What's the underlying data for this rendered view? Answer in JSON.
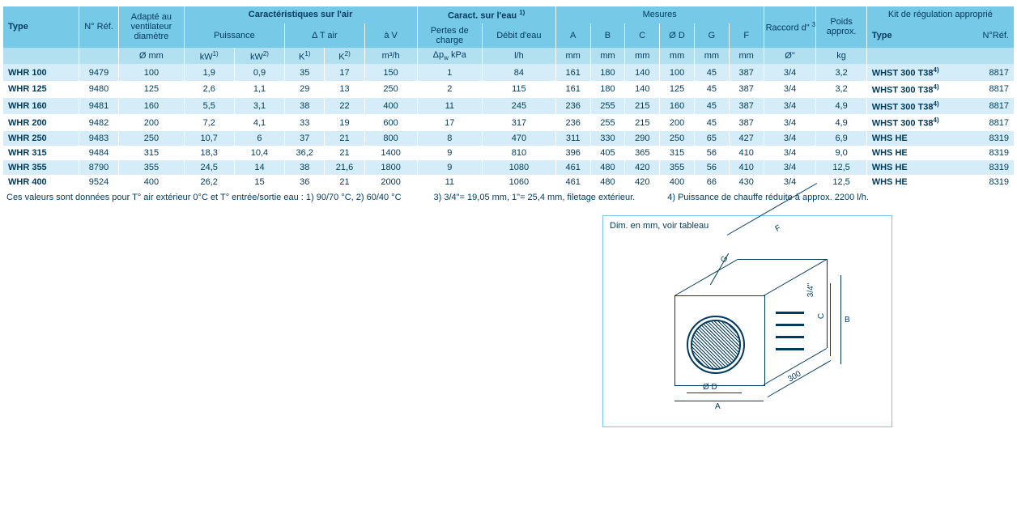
{
  "colors": {
    "h1": "#77c9e8",
    "h2": "#b3e0f1",
    "rowA": "#d4edf8",
    "rowB": "#ffffff",
    "text": "#003a5d"
  },
  "header": {
    "type": "Type",
    "ref": "N°\nRéf.",
    "fan": "Adapté au ventilateur diamètre",
    "air": "Caractéristiques sur l'air",
    "water": "Caract. sur l'eau ",
    "water_sup": "1)",
    "measures": "Mesures",
    "conn": "Raccord d\" ",
    "conn_sup": "3)",
    "weight": "Poids approx.",
    "kit": "Kit de régulation approprié",
    "power": "Puissance",
    "dtair": "Δ T air",
    "av": "à V",
    "dp": "Pertes de charge",
    "flow": "Débit d'eau",
    "A": "A",
    "B": "B",
    "C": "C",
    "D": "Ø D",
    "G": "G",
    "F": "F",
    "kit_type": "Type",
    "kit_ref": "N°Réf."
  },
  "units": {
    "mm": "Ø mm",
    "kw1": "kW",
    "kw1s": "1)",
    "kw2": "kW",
    "kw2s": "2)",
    "k1": "K",
    "k1s": "1)",
    "k2": "K",
    "k2s": "2)",
    "m3h": "m³/h",
    "dp": "Δp",
    "dpw": "w",
    "dpk": " kPa",
    "lh": "l/h",
    "Amm": "mm",
    "Bmm": "mm",
    "Cmm": "mm",
    "Dmm": "mm",
    "Gmm": "mm",
    "Fmm": "mm",
    "inch": "Ø\"",
    "kg": "kg"
  },
  "rows": [
    {
      "type": "WHR 100",
      "ref": "9479",
      "dia": "100",
      "kw1": "1,9",
      "kw2": "0,9",
      "k1": "35",
      "k2": "17",
      "v": "150",
      "dp": "1",
      "lh": "84",
      "A": "161",
      "B": "180",
      "C": "140",
      "D": "100",
      "G": "45",
      "F": "387",
      "conn": "3/4",
      "kg": "3,2",
      "kit": "WHST 300 T38",
      "kitsup": "4)",
      "kitref": "8817"
    },
    {
      "type": "WHR 125",
      "ref": "9480",
      "dia": "125",
      "kw1": "2,6",
      "kw2": "1,1",
      "k1": "29",
      "k2": "13",
      "v": "250",
      "dp": "2",
      "lh": "115",
      "A": "161",
      "B": "180",
      "C": "140",
      "D": "125",
      "G": "45",
      "F": "387",
      "conn": "3/4",
      "kg": "3,2",
      "kit": "WHST 300 T38",
      "kitsup": "4)",
      "kitref": "8817"
    },
    {
      "type": "WHR 160",
      "ref": "9481",
      "dia": "160",
      "kw1": "5,5",
      "kw2": "3,1",
      "k1": "38",
      "k2": "22",
      "v": "400",
      "dp": "11",
      "lh": "245",
      "A": "236",
      "B": "255",
      "C": "215",
      "D": "160",
      "G": "45",
      "F": "387",
      "conn": "3/4",
      "kg": "4,9",
      "kit": "WHST 300 T38",
      "kitsup": "4)",
      "kitref": "8817"
    },
    {
      "type": "WHR 200",
      "ref": "9482",
      "dia": "200",
      "kw1": "7,2",
      "kw2": "4,1",
      "k1": "33",
      "k2": "19",
      "v": "600",
      "dp": "17",
      "lh": "317",
      "A": "236",
      "B": "255",
      "C": "215",
      "D": "200",
      "G": "45",
      "F": "387",
      "conn": "3/4",
      "kg": "4,9",
      "kit": "WHST 300 T38",
      "kitsup": "4)",
      "kitref": "8817"
    },
    {
      "type": "WHR 250",
      "ref": "9483",
      "dia": "250",
      "kw1": "10,7",
      "kw2": "6",
      "k1": "37",
      "k2": "21",
      "v": "800",
      "dp": "8",
      "lh": "470",
      "A": "311",
      "B": "330",
      "C": "290",
      "D": "250",
      "G": "65",
      "F": "427",
      "conn": "3/4",
      "kg": "6,9",
      "kit": "WHS HE",
      "kitsup": "",
      "kitref": "8319"
    },
    {
      "type": "WHR 315",
      "ref": "9484",
      "dia": "315",
      "kw1": "18,3",
      "kw2": "10,4",
      "k1": "36,2",
      "k2": "21",
      "v": "1400",
      "dp": "9",
      "lh": "810",
      "A": "396",
      "B": "405",
      "C": "365",
      "D": "315",
      "G": "56",
      "F": "410",
      "conn": "3/4",
      "kg": "9,0",
      "kit": "WHS HE",
      "kitsup": "",
      "kitref": "8319"
    },
    {
      "type": "WHR 355",
      "ref": "8790",
      "dia": "355",
      "kw1": "24,5",
      "kw2": "14",
      "k1": "38",
      "k2": "21,6",
      "v": "1800",
      "dp": "9",
      "lh": "1080",
      "A": "461",
      "B": "480",
      "C": "420",
      "D": "355",
      "G": "56",
      "F": "410",
      "conn": "3/4",
      "kg": "12,5",
      "kit": "WHS HE",
      "kitsup": "",
      "kitref": "8319"
    },
    {
      "type": "WHR 400",
      "ref": "9524",
      "dia": "400",
      "kw1": "26,2",
      "kw2": "15",
      "k1": "36",
      "k2": "21",
      "v": "2000",
      "dp": "11",
      "lh": "1060",
      "A": "461",
      "B": "480",
      "C": "420",
      "D": "400",
      "G": "66",
      "F": "430",
      "conn": "3/4",
      "kg": "12,5",
      "kit": "WHS HE",
      "kitsup": "",
      "kitref": "8319"
    }
  ],
  "footnotes": {
    "a": "Ces valeurs sont données pour T° air extérieur 0°C et T° entrée/sortie eau : 1) 90/70 °C, 2) 60/40 °C",
    "b": "3) 3/4\"= 19,05 mm, 1\"= 25,4 mm, filetage extérieur.",
    "c": "4) Puissance de chauffe réduite à approx. 2200 l/h."
  },
  "diagram": {
    "title": "Dim. en mm, voir tableau",
    "labels": {
      "A": "A",
      "B": "B",
      "C": "C",
      "D": "Ø D",
      "F": "F",
      "G": "G",
      "conn": "3/4\"",
      "depth": "300"
    }
  },
  "layout": {
    "widths": [
      72,
      38,
      62,
      48,
      48,
      38,
      38,
      50,
      62,
      70,
      33,
      33,
      33,
      33,
      33,
      33,
      50,
      48,
      100,
      40
    ]
  }
}
